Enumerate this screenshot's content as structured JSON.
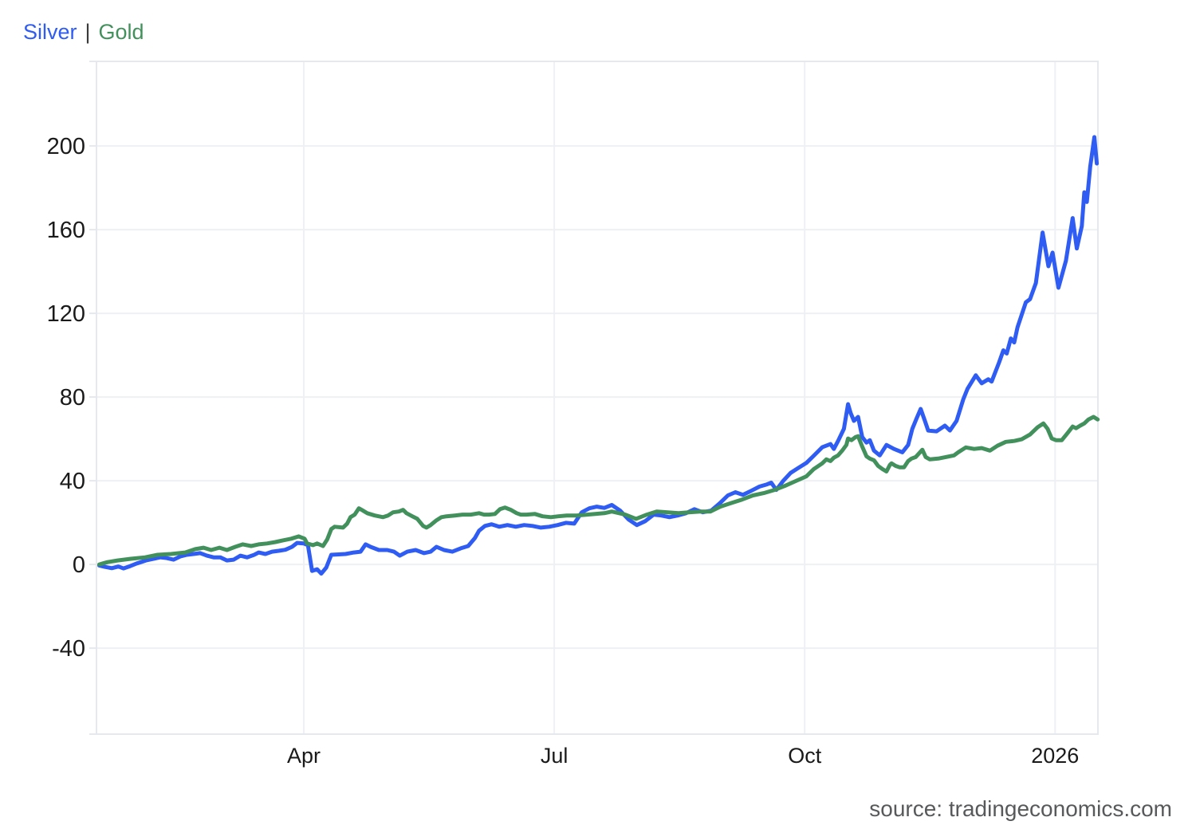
{
  "legend": {
    "silver": "Silver",
    "separator": "|",
    "gold": "Gold"
  },
  "source": {
    "text": "source: tradingeconomics.com"
  },
  "colors": {
    "silver": "#2F5CF2",
    "gold": "#42915C",
    "legend_separator": "#3A3A3A",
    "axis_label": "#1A1A1A",
    "grid": "#EEF0F3",
    "border": "#E5E8EC",
    "source_text": "#58595B"
  },
  "chart_data": {
    "type": "line",
    "grid": true,
    "legend_position": "top-left",
    "x_axis": {
      "unit": "months since 2025-01-01",
      "domain": [
        0.517,
        12.513
      ],
      "tick_positions": [
        3,
        6,
        9,
        12
      ],
      "tick_labels": [
        "Apr",
        "Jul",
        "Oct",
        "2026"
      ]
    },
    "y_axis": {
      "unit": "percent change",
      "domain": [
        -81.1,
        240.4
      ],
      "tick_values": [
        200,
        160,
        120,
        80,
        40,
        0,
        -40
      ],
      "tick_labels": [
        "200",
        "160",
        "120",
        "80",
        "40",
        "0",
        "-40"
      ]
    },
    "series": [
      {
        "name": "Silver",
        "color": "#2F5CF2",
        "points": [
          [
            0.55,
            -0.5
          ],
          [
            0.62,
            -1.2
          ],
          [
            0.7,
            -1.8
          ],
          [
            0.78,
            -1
          ],
          [
            0.84,
            -1.9
          ],
          [
            0.92,
            -0.8
          ],
          [
            1,
            0.5
          ],
          [
            1.05,
            1.1
          ],
          [
            1.12,
            2
          ],
          [
            1.2,
            2.7
          ],
          [
            1.28,
            3.4
          ],
          [
            1.36,
            3
          ],
          [
            1.44,
            2.3
          ],
          [
            1.52,
            3.8
          ],
          [
            1.6,
            4.6
          ],
          [
            1.68,
            5
          ],
          [
            1.76,
            5.4
          ],
          [
            1.84,
            4.2
          ],
          [
            1.92,
            3.4
          ],
          [
            2,
            3.4
          ],
          [
            2.08,
            1.9
          ],
          [
            2.16,
            2.3
          ],
          [
            2.24,
            4.2
          ],
          [
            2.32,
            3.4
          ],
          [
            2.4,
            4.5
          ],
          [
            2.46,
            5.7
          ],
          [
            2.54,
            5
          ],
          [
            2.62,
            6.1
          ],
          [
            2.7,
            6.5
          ],
          [
            2.78,
            7
          ],
          [
            2.86,
            8.4
          ],
          [
            2.92,
            10.3
          ],
          [
            3,
            10
          ],
          [
            3.05,
            9.2
          ],
          [
            3.1,
            -3.1
          ],
          [
            3.16,
            -2.3
          ],
          [
            3.21,
            -4.4
          ],
          [
            3.27,
            -1.5
          ],
          [
            3.33,
            4.6
          ],
          [
            3.42,
            4.8
          ],
          [
            3.5,
            5
          ],
          [
            3.6,
            5.7
          ],
          [
            3.68,
            6.1
          ],
          [
            3.74,
            9.6
          ],
          [
            3.8,
            8.4
          ],
          [
            3.9,
            6.9
          ],
          [
            4,
            6.9
          ],
          [
            4.08,
            6.1
          ],
          [
            4.15,
            4.2
          ],
          [
            4.24,
            6.1
          ],
          [
            4.34,
            6.9
          ],
          [
            4.44,
            5.4
          ],
          [
            4.52,
            6.1
          ],
          [
            4.59,
            8.4
          ],
          [
            4.68,
            6.9
          ],
          [
            4.78,
            6.1
          ],
          [
            4.88,
            7.7
          ],
          [
            4.97,
            8.8
          ],
          [
            5.05,
            12.6
          ],
          [
            5.1,
            16.1
          ],
          [
            5.17,
            18.4
          ],
          [
            5.25,
            19.2
          ],
          [
            5.34,
            18
          ],
          [
            5.44,
            18.8
          ],
          [
            5.54,
            18
          ],
          [
            5.64,
            18.8
          ],
          [
            5.74,
            18.4
          ],
          [
            5.84,
            17.6
          ],
          [
            5.94,
            18
          ],
          [
            6.04,
            18.8
          ],
          [
            6.14,
            19.9
          ],
          [
            6.24,
            19.5
          ],
          [
            6.33,
            24.9
          ],
          [
            6.42,
            26.8
          ],
          [
            6.51,
            27.6
          ],
          [
            6.6,
            27
          ],
          [
            6.69,
            28.4
          ],
          [
            6.79,
            25.7
          ],
          [
            6.89,
            21.5
          ],
          [
            6.99,
            18.8
          ],
          [
            7.09,
            20.7
          ],
          [
            7.19,
            23.8
          ],
          [
            7.28,
            23.4
          ],
          [
            7.38,
            22.6
          ],
          [
            7.48,
            23.4
          ],
          [
            7.58,
            24.5
          ],
          [
            7.68,
            26.4
          ],
          [
            7.78,
            24.9
          ],
          [
            7.88,
            25.7
          ],
          [
            7.98,
            29.1
          ],
          [
            8.08,
            33
          ],
          [
            8.17,
            34.5
          ],
          [
            8.26,
            33.3
          ],
          [
            8.36,
            35.2
          ],
          [
            8.46,
            37.2
          ],
          [
            8.55,
            38.3
          ],
          [
            8.6,
            39.1
          ],
          [
            8.66,
            35.6
          ],
          [
            8.74,
            39.8
          ],
          [
            8.83,
            43.7
          ],
          [
            8.92,
            46
          ],
          [
            9.02,
            48.5
          ],
          [
            9.11,
            52
          ],
          [
            9.21,
            56
          ],
          [
            9.31,
            57.5
          ],
          [
            9.35,
            55.2
          ],
          [
            9.4,
            59
          ],
          [
            9.47,
            64.8
          ],
          [
            9.52,
            76.6
          ],
          [
            9.55,
            72.4
          ],
          [
            9.59,
            68.6
          ],
          [
            9.64,
            70.5
          ],
          [
            9.69,
            60.9
          ],
          [
            9.74,
            58.2
          ],
          [
            9.78,
            59.4
          ],
          [
            9.83,
            54.4
          ],
          [
            9.9,
            52.1
          ],
          [
            9.98,
            57.1
          ],
          [
            10.07,
            55.2
          ],
          [
            10.17,
            53.6
          ],
          [
            10.24,
            57.1
          ],
          [
            10.29,
            64.8
          ],
          [
            10.34,
            69.7
          ],
          [
            10.39,
            74.3
          ],
          [
            10.44,
            68.6
          ],
          [
            10.48,
            64
          ],
          [
            10.58,
            63.6
          ],
          [
            10.68,
            66.3
          ],
          [
            10.74,
            64
          ],
          [
            10.82,
            68.6
          ],
          [
            10.9,
            78.9
          ],
          [
            10.95,
            83.9
          ],
          [
            11.05,
            90.4
          ],
          [
            11.12,
            86.6
          ],
          [
            11.2,
            88.5
          ],
          [
            11.24,
            87.4
          ],
          [
            11.33,
            96.6
          ],
          [
            11.38,
            102.3
          ],
          [
            11.42,
            100.8
          ],
          [
            11.47,
            108
          ],
          [
            11.51,
            106.1
          ],
          [
            11.55,
            113.4
          ],
          [
            11.65,
            125.3
          ],
          [
            11.7,
            126.8
          ],
          [
            11.77,
            134.5
          ],
          [
            11.85,
            158.6
          ],
          [
            11.92,
            142.5
          ],
          [
            11.97,
            149
          ],
          [
            12.04,
            132.2
          ],
          [
            12.13,
            145.2
          ],
          [
            12.21,
            165.5
          ],
          [
            12.26,
            151
          ],
          [
            12.32,
            161.7
          ],
          [
            12.35,
            177.8
          ],
          [
            12.38,
            173.2
          ],
          [
            12.42,
            190
          ],
          [
            12.47,
            204.2
          ],
          [
            12.5,
            191.6
          ]
        ]
      },
      {
        "name": "Gold",
        "color": "#42915C",
        "points": [
          [
            0.55,
            0
          ],
          [
            0.65,
            1.1
          ],
          [
            0.77,
            1.9
          ],
          [
            0.93,
            2.7
          ],
          [
            1.1,
            3.4
          ],
          [
            1.25,
            4.6
          ],
          [
            1.41,
            5
          ],
          [
            1.58,
            5.7
          ],
          [
            1.7,
            7.3
          ],
          [
            1.8,
            8
          ],
          [
            1.89,
            6.9
          ],
          [
            1.99,
            8
          ],
          [
            2.08,
            6.9
          ],
          [
            2.18,
            8.4
          ],
          [
            2.27,
            9.6
          ],
          [
            2.37,
            8.8
          ],
          [
            2.46,
            9.6
          ],
          [
            2.56,
            10
          ],
          [
            2.66,
            10.7
          ],
          [
            2.75,
            11.5
          ],
          [
            2.85,
            12.3
          ],
          [
            2.94,
            13.4
          ],
          [
            3.01,
            12.3
          ],
          [
            3.04,
            10
          ],
          [
            3.11,
            9.2
          ],
          [
            3.16,
            10
          ],
          [
            3.23,
            8.8
          ],
          [
            3.28,
            11.9
          ],
          [
            3.33,
            16.9
          ],
          [
            3.37,
            18
          ],
          [
            3.47,
            17.6
          ],
          [
            3.52,
            19.5
          ],
          [
            3.56,
            22.6
          ],
          [
            3.61,
            23.8
          ],
          [
            3.66,
            26.8
          ],
          [
            3.71,
            25.7
          ],
          [
            3.76,
            24.5
          ],
          [
            3.85,
            23.4
          ],
          [
            3.95,
            22.6
          ],
          [
            4.01,
            23.4
          ],
          [
            4.07,
            24.9
          ],
          [
            4.14,
            25.3
          ],
          [
            4.19,
            26.1
          ],
          [
            4.23,
            24.5
          ],
          [
            4.3,
            23
          ],
          [
            4.36,
            21.8
          ],
          [
            4.43,
            18.4
          ],
          [
            4.47,
            17.6
          ],
          [
            4.52,
            18.8
          ],
          [
            4.59,
            21.1
          ],
          [
            4.65,
            22.6
          ],
          [
            4.71,
            23
          ],
          [
            4.81,
            23.4
          ],
          [
            4.9,
            23.8
          ],
          [
            5,
            23.8
          ],
          [
            5.1,
            24.5
          ],
          [
            5.16,
            23.8
          ],
          [
            5.22,
            23.8
          ],
          [
            5.29,
            24.1
          ],
          [
            5.35,
            26.4
          ],
          [
            5.41,
            27.2
          ],
          [
            5.48,
            26.1
          ],
          [
            5.55,
            24.5
          ],
          [
            5.6,
            23.8
          ],
          [
            5.67,
            23.8
          ],
          [
            5.77,
            24.1
          ],
          [
            5.86,
            23
          ],
          [
            5.96,
            22.6
          ],
          [
            6.05,
            23
          ],
          [
            6.15,
            23.4
          ],
          [
            6.27,
            23.4
          ],
          [
            6.45,
            24
          ],
          [
            6.6,
            24.5
          ],
          [
            6.69,
            25.3
          ],
          [
            6.85,
            23.8
          ],
          [
            6.98,
            21.8
          ],
          [
            7.11,
            23.8
          ],
          [
            7.23,
            25.3
          ],
          [
            7.36,
            24.9
          ],
          [
            7.49,
            24.5
          ],
          [
            7.61,
            24.9
          ],
          [
            7.75,
            25.3
          ],
          [
            7.87,
            25.3
          ],
          [
            7.99,
            27.6
          ],
          [
            8.13,
            29.5
          ],
          [
            8.25,
            31
          ],
          [
            8.38,
            33
          ],
          [
            8.51,
            34.1
          ],
          [
            8.64,
            35.6
          ],
          [
            8.76,
            37.5
          ],
          [
            8.89,
            39.8
          ],
          [
            9.02,
            42.1
          ],
          [
            9.11,
            45.6
          ],
          [
            9.21,
            48.3
          ],
          [
            9.26,
            50.2
          ],
          [
            9.31,
            49.4
          ],
          [
            9.35,
            51
          ],
          [
            9.4,
            52.1
          ],
          [
            9.45,
            54.4
          ],
          [
            9.5,
            57.1
          ],
          [
            9.52,
            60.2
          ],
          [
            9.56,
            59.4
          ],
          [
            9.61,
            60.9
          ],
          [
            9.64,
            61.3
          ],
          [
            9.69,
            56.3
          ],
          [
            9.74,
            51.7
          ],
          [
            9.78,
            50.6
          ],
          [
            9.83,
            49.8
          ],
          [
            9.88,
            47.1
          ],
          [
            9.93,
            45.6
          ],
          [
            9.98,
            44.4
          ],
          [
            10.02,
            47.5
          ],
          [
            10.04,
            48.3
          ],
          [
            10.09,
            47.1
          ],
          [
            10.14,
            46.4
          ],
          [
            10.19,
            46.4
          ],
          [
            10.24,
            49.4
          ],
          [
            10.28,
            50.6
          ],
          [
            10.33,
            51.3
          ],
          [
            10.41,
            54.8
          ],
          [
            10.45,
            51.3
          ],
          [
            10.5,
            50.2
          ],
          [
            10.6,
            50.6
          ],
          [
            10.69,
            51.3
          ],
          [
            10.79,
            52.1
          ],
          [
            10.84,
            53.6
          ],
          [
            10.93,
            55.9
          ],
          [
            11.03,
            55.2
          ],
          [
            11.12,
            55.6
          ],
          [
            11.22,
            54.4
          ],
          [
            11.31,
            56.7
          ],
          [
            11.41,
            58.6
          ],
          [
            11.51,
            59
          ],
          [
            11.6,
            59.8
          ],
          [
            11.7,
            62.1
          ],
          [
            11.79,
            65.5
          ],
          [
            11.86,
            67.4
          ],
          [
            11.91,
            64.8
          ],
          [
            11.96,
            60.2
          ],
          [
            12.01,
            59.4
          ],
          [
            12.08,
            59.4
          ],
          [
            12.15,
            62.8
          ],
          [
            12.21,
            65.9
          ],
          [
            12.25,
            65.1
          ],
          [
            12.3,
            66.3
          ],
          [
            12.35,
            67.4
          ],
          [
            12.4,
            69.3
          ],
          [
            12.46,
            70.5
          ],
          [
            12.51,
            69.3
          ]
        ]
      }
    ]
  }
}
